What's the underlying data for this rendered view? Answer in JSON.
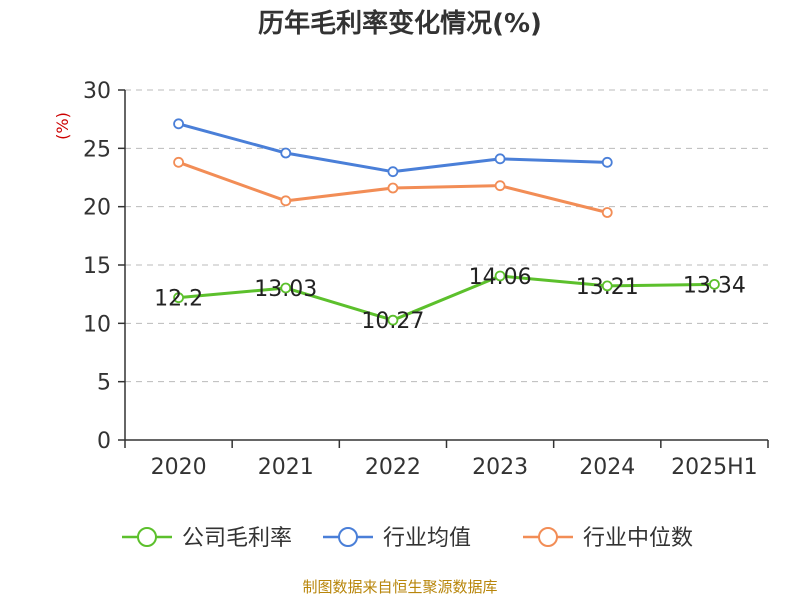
{
  "chart_data": {
    "type": "line",
    "title": "历年毛利率变化情况(%)",
    "ylabel": "(%)",
    "xlabel": "",
    "categories": [
      "2020",
      "2021",
      "2022",
      "2023",
      "2024",
      "2025H1"
    ],
    "ylim": [
      0,
      30
    ],
    "yticks": [
      0,
      5,
      10,
      15,
      20,
      25,
      30
    ],
    "grid": true,
    "legend_position": "bottom",
    "series": [
      {
        "name": "公司毛利率",
        "color": "#5cc02c",
        "values": [
          12.2,
          13.03,
          10.27,
          14.06,
          13.21,
          13.34
        ],
        "labels": [
          "12.2",
          "13.03",
          "10.27",
          "14.06",
          "13.21",
          "13.34"
        ]
      },
      {
        "name": "行业均值",
        "color": "#4a7fd8",
        "values": [
          27.1,
          24.6,
          23.0,
          24.1,
          23.8,
          null
        ]
      },
      {
        "name": "行业中位数",
        "color": "#f28d56",
        "values": [
          23.8,
          20.5,
          21.6,
          21.8,
          19.5,
          null
        ]
      }
    ]
  },
  "source": "制图数据来自恒生聚源数据库"
}
